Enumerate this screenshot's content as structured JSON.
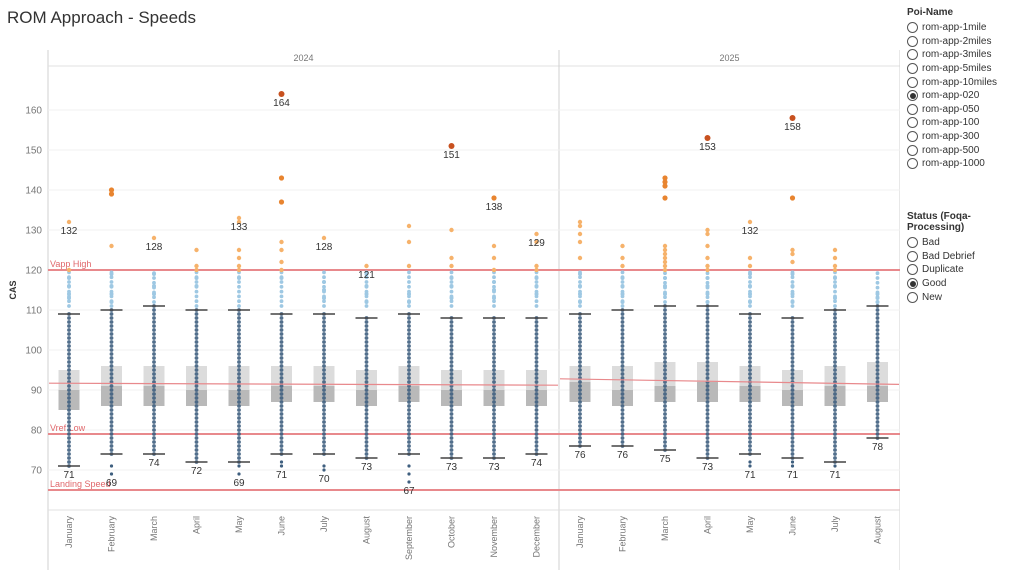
{
  "page": {
    "title": "ROM Approach - Speeds"
  },
  "legend_poi": {
    "title": "Poi-Name",
    "items": [
      {
        "label": "rom-app-1mile",
        "selected": false
      },
      {
        "label": "rom-app-2miles",
        "selected": false
      },
      {
        "label": "rom-app-3miles",
        "selected": false
      },
      {
        "label": "rom-app-5miles",
        "selected": false
      },
      {
        "label": "rom-app-10miles",
        "selected": false
      },
      {
        "label": "rom-app-020",
        "selected": true
      },
      {
        "label": "rom-app-050",
        "selected": false
      },
      {
        "label": "rom-app-100",
        "selected": false
      },
      {
        "label": "rom-app-300",
        "selected": false
      },
      {
        "label": "rom-app-500",
        "selected": false
      },
      {
        "label": "rom-app-1000",
        "selected": false
      }
    ]
  },
  "legend_status": {
    "title": "Status (Foqa-Processing)",
    "items": [
      {
        "label": "Bad",
        "selected": false
      },
      {
        "label": "Bad Debrief",
        "selected": false
      },
      {
        "label": "Duplicate",
        "selected": false
      },
      {
        "label": "Good",
        "selected": true
      },
      {
        "label": "New",
        "selected": false
      }
    ]
  },
  "chart_data": {
    "type": "box-scatter",
    "ylabel": "CAS",
    "ylim": [
      60,
      171
    ],
    "yticks": [
      70,
      80,
      90,
      100,
      110,
      120,
      130,
      140,
      150,
      160
    ],
    "panels": [
      {
        "label": "2024",
        "categories": [
          "January",
          "February",
          "March",
          "April",
          "May",
          "June",
          "July",
          "August",
          "September",
          "October",
          "November",
          "December"
        ]
      },
      {
        "label": "2025",
        "categories": [
          "January",
          "February",
          "March",
          "April",
          "May",
          "June",
          "July",
          "August"
        ]
      }
    ],
    "reference_lines": [
      {
        "label": "Vapp High",
        "value": 120
      },
      {
        "label": "Vref Low",
        "value": 79
      },
      {
        "label": "Landing Speed",
        "value": 65
      }
    ],
    "trend_lines": [
      {
        "panel": 0,
        "start": 91.7,
        "end": 91.2
      },
      {
        "panel": 1,
        "start": 92.8,
        "end": 91.4
      }
    ],
    "colors": {
      "ref_line": "#e8898c",
      "dot_dark": "#3f5f7f",
      "dot_light": "#9ec8e3",
      "dot_orange_light": "#f6b26b",
      "dot_orange": "#e8842f",
      "dot_red": "#c8511f",
      "box_upper": "#dcdcdc",
      "box_lower": "#b9b9b9",
      "trend": "#e8898c",
      "whisker": "#444444"
    },
    "series": [
      {
        "panel": 0,
        "month": "January",
        "min": 71,
        "q1": 85,
        "median": 90,
        "q3": 95,
        "max": 109,
        "min_label": "71",
        "max_label": "132",
        "outliers": [
          132,
          120,
          118,
          116,
          114,
          113
        ]
      },
      {
        "panel": 0,
        "month": "February",
        "min": 74,
        "q1": 86,
        "median": 91,
        "q3": 96,
        "max": 110,
        "min_label": "69",
        "max_label": "",
        "outliers": [
          140,
          139,
          126,
          119,
          116,
          114,
          112,
          71,
          69
        ]
      },
      {
        "panel": 0,
        "month": "March",
        "min": 74,
        "q1": 86,
        "median": 91,
        "q3": 96,
        "max": 111,
        "min_label": "74",
        "max_label": "128",
        "outliers": [
          128,
          119,
          116,
          114
        ]
      },
      {
        "panel": 0,
        "month": "April",
        "min": 72,
        "q1": 86,
        "median": 90,
        "q3": 96,
        "max": 110,
        "min_label": "72",
        "max_label": "",
        "outliers": [
          125,
          121,
          120,
          118,
          116
        ]
      },
      {
        "panel": 0,
        "month": "May",
        "min": 72,
        "q1": 86,
        "median": 90,
        "q3": 96,
        "max": 110,
        "min_label": "69",
        "max_label": "133",
        "outliers": [
          133,
          132,
          125,
          123,
          121,
          120,
          118,
          71,
          69
        ]
      },
      {
        "panel": 0,
        "month": "June",
        "min": 74,
        "q1": 87,
        "median": 91,
        "q3": 96,
        "max": 109,
        "min_label": "71",
        "max_label": "164",
        "outliers": [
          164,
          143,
          137,
          127,
          125,
          122,
          120,
          118,
          72,
          71
        ]
      },
      {
        "panel": 0,
        "month": "July",
        "min": 74,
        "q1": 87,
        "median": 91,
        "q3": 96,
        "max": 109,
        "min_label": "70",
        "max_label": "128",
        "outliers": [
          128,
          117,
          115,
          113,
          71,
          70
        ]
      },
      {
        "panel": 0,
        "month": "August",
        "min": 73,
        "q1": 86,
        "median": 90,
        "q3": 95,
        "max": 108,
        "min_label": "73",
        "max_label": "121",
        "outliers": [
          121,
          119,
          116,
          114,
          112
        ]
      },
      {
        "panel": 0,
        "month": "September",
        "min": 74,
        "q1": 87,
        "median": 91,
        "q3": 96,
        "max": 109,
        "min_label": "67",
        "max_label": "",
        "outliers": [
          131,
          127,
          121,
          114,
          112,
          71,
          69,
          67
        ]
      },
      {
        "panel": 0,
        "month": "October",
        "min": 73,
        "q1": 86,
        "median": 90,
        "q3": 95,
        "max": 108,
        "min_label": "73",
        "max_label": "151",
        "outliers": [
          151,
          130,
          123,
          121,
          118,
          116,
          113
        ]
      },
      {
        "panel": 0,
        "month": "November",
        "min": 73,
        "q1": 86,
        "median": 90,
        "q3": 95,
        "max": 108,
        "min_label": "73",
        "max_label": "138",
        "outliers": [
          138,
          126,
          123,
          120,
          117,
          115,
          113
        ]
      },
      {
        "panel": 0,
        "month": "December",
        "min": 74,
        "q1": 86,
        "median": 90,
        "q3": 95,
        "max": 108,
        "min_label": "74",
        "max_label": "129",
        "outliers": [
          129,
          127,
          121,
          120,
          118,
          116,
          114
        ]
      },
      {
        "panel": 1,
        "month": "January",
        "min": 76,
        "q1": 87,
        "median": 92,
        "q3": 96,
        "max": 109,
        "min_label": "76",
        "max_label": "",
        "outliers": [
          132,
          131,
          129,
          127,
          123,
          119,
          116,
          114,
          112
        ]
      },
      {
        "panel": 1,
        "month": "February",
        "min": 76,
        "q1": 86,
        "median": 90,
        "q3": 96,
        "max": 110,
        "min_label": "76",
        "max_label": "",
        "outliers": [
          126,
          123,
          121,
          118,
          116,
          114,
          112
        ]
      },
      {
        "panel": 1,
        "month": "March",
        "min": 75,
        "q1": 87,
        "median": 91,
        "q3": 97,
        "max": 111,
        "min_label": "75",
        "max_label": "",
        "outliers": [
          143,
          142,
          141,
          138,
          126,
          125,
          124,
          123,
          122,
          121,
          120,
          118,
          116,
          114
        ]
      },
      {
        "panel": 1,
        "month": "April",
        "min": 73,
        "q1": 87,
        "median": 92,
        "q3": 97,
        "max": 111,
        "min_label": "73",
        "max_label": "153",
        "outliers": [
          153,
          130,
          129,
          126,
          123,
          121,
          120,
          118,
          116,
          114,
          112
        ]
      },
      {
        "panel": 1,
        "month": "May",
        "min": 74,
        "q1": 87,
        "median": 91,
        "q3": 96,
        "max": 109,
        "min_label": "71",
        "max_label": "132",
        "outliers": [
          132,
          123,
          121,
          119,
          116,
          114,
          112,
          72,
          71
        ]
      },
      {
        "panel": 1,
        "month": "June",
        "min": 73,
        "q1": 86,
        "median": 90,
        "q3": 95,
        "max": 108,
        "min_label": "71",
        "max_label": "158",
        "outliers": [
          158,
          138,
          125,
          124,
          122,
          119,
          116,
          114,
          112,
          72,
          71
        ]
      },
      {
        "panel": 1,
        "month": "July",
        "min": 72,
        "q1": 86,
        "median": 91,
        "q3": 96,
        "max": 110,
        "min_label": "71",
        "max_label": "",
        "outliers": [
          125,
          123,
          121,
          120,
          118,
          116,
          113,
          71
        ]
      },
      {
        "panel": 1,
        "month": "August",
        "min": 78,
        "q1": 87,
        "median": 91,
        "q3": 97,
        "max": 111,
        "min_label": "78",
        "max_label": "",
        "outliers": [
          114,
          113,
          112
        ]
      }
    ]
  }
}
